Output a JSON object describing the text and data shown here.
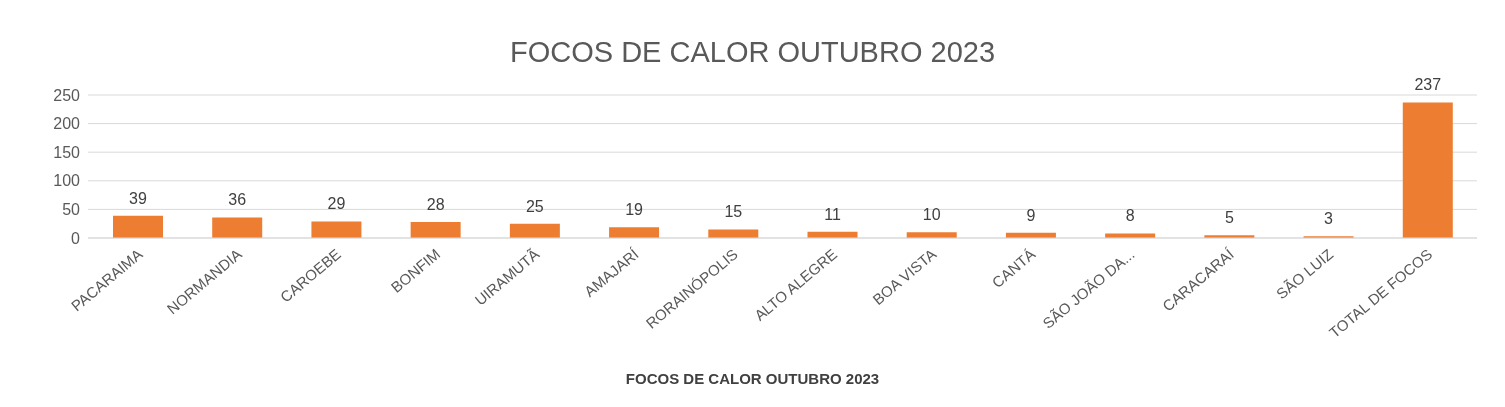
{
  "chart_data": {
    "type": "bar",
    "title": "FOCOS DE CALOR OUTUBRO 2023",
    "xlabel": "FOCOS DE CALOR OUTUBRO 2023",
    "categories": [
      "PACARAIMA",
      "NORMANDIA",
      "CAROEBE",
      "BONFIM",
      "UIRAMUTÃ",
      "AMAJARÍ",
      "RORAINÓPOLIS",
      "ALTO ALEGRE",
      "BOA VISTA",
      "CANTÁ",
      "SÃO JOÃO DA...",
      "CARACARAÍ",
      "SÃO LUIZ",
      "TOTAL DE FOCOS"
    ],
    "values": [
      39,
      36,
      29,
      28,
      25,
      19,
      15,
      11,
      10,
      9,
      8,
      5,
      3,
      237
    ],
    "color": "#ed7d31",
    "ylim": [
      0,
      250
    ],
    "yticks": [
      0,
      50,
      100,
      150,
      200,
      250
    ],
    "grid": "y",
    "data_labels": true
  }
}
